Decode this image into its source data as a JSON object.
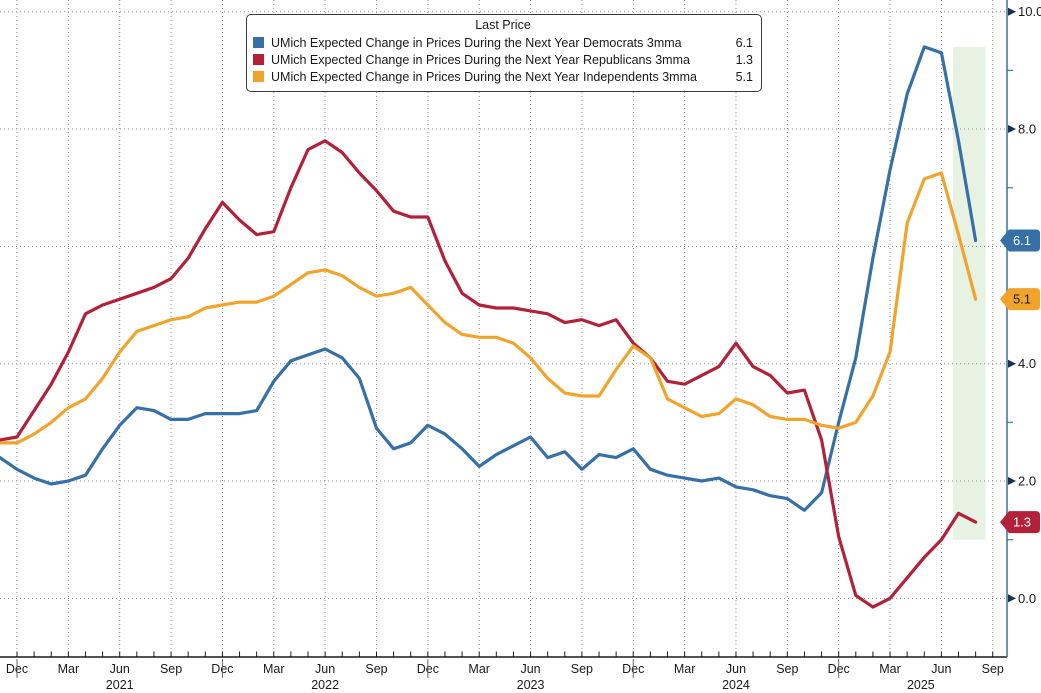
{
  "legend": {
    "title": "Last Price",
    "items": [
      {
        "id": "democrats",
        "label": "UMich Expected Change in Prices During the Next Year Democrats 3mma",
        "value": "6.1"
      },
      {
        "id": "republicans",
        "label": "UMich Expected Change in Prices During the Next Year Republicans 3mma",
        "value": "1.3"
      },
      {
        "id": "independents",
        "label": "UMich Expected Change in Prices During the Next Year Independents 3mma",
        "value": "5.1"
      }
    ]
  },
  "colors": {
    "democrats": "#3670a6",
    "republicans": "#b32039",
    "independents": "#f0a42c",
    "grid": "#8f8f8f",
    "x_axis_line": "#1a1a1a",
    "y_axis_line": "#4878a0",
    "highlight_band": "#e8f2e3",
    "label_text": "#1a1a1a"
  },
  "chart_data": {
    "type": "line",
    "title": "",
    "x_label": "",
    "y_label": "",
    "grid": "dotted",
    "legend_position": "top-center",
    "ylim": [
      -1.0,
      10.2
    ],
    "x": [
      "Nov-20",
      "Dec-20",
      "Jan-21",
      "Feb-21",
      "Mar-21",
      "Apr-21",
      "May-21",
      "Jun-21",
      "Jul-21",
      "Aug-21",
      "Sep-21",
      "Oct-21",
      "Nov-21",
      "Dec-21",
      "Jan-22",
      "Feb-22",
      "Mar-22",
      "Apr-22",
      "May-22",
      "Jun-22",
      "Jul-22",
      "Aug-22",
      "Sep-22",
      "Oct-22",
      "Nov-22",
      "Dec-22",
      "Jan-23",
      "Feb-23",
      "Mar-23",
      "Apr-23",
      "May-23",
      "Jun-23",
      "Jul-23",
      "Aug-23",
      "Sep-23",
      "Oct-23",
      "Nov-23",
      "Dec-23",
      "Jan-24",
      "Feb-24",
      "Mar-24",
      "Apr-24",
      "May-24",
      "Jun-24",
      "Jul-24",
      "Aug-24",
      "Sep-24",
      "Oct-24",
      "Nov-24",
      "Dec-24",
      "Jan-25",
      "Feb-25",
      "Mar-25",
      "Apr-25",
      "May-25",
      "Jun-25",
      "Jul-25",
      "Aug-25"
    ],
    "series": [
      {
        "id": "democrats",
        "name": "UMich Expected Change in Prices During the Next Year Democrats 3mma",
        "last_price": 6.1,
        "values": [
          2.4,
          2.2,
          2.05,
          1.95,
          2.0,
          2.1,
          2.55,
          2.95,
          3.25,
          3.2,
          3.05,
          3.05,
          3.15,
          3.15,
          3.15,
          3.2,
          3.7,
          4.05,
          4.15,
          4.25,
          4.1,
          3.75,
          2.9,
          2.55,
          2.65,
          2.95,
          2.8,
          2.55,
          2.25,
          2.45,
          2.6,
          2.75,
          2.4,
          2.5,
          2.2,
          2.45,
          2.4,
          2.55,
          2.2,
          2.1,
          2.05,
          2.0,
          2.05,
          1.9,
          1.85,
          1.75,
          1.7,
          1.5,
          1.8,
          3.0,
          4.1,
          5.8,
          7.3,
          8.6,
          9.4,
          9.3,
          7.8,
          6.1
        ]
      },
      {
        "id": "republicans",
        "name": "UMich Expected Change in Prices During the Next Year Republicans 3mma",
        "last_price": 1.3,
        "values": [
          2.7,
          2.75,
          3.2,
          3.65,
          4.2,
          4.85,
          5.0,
          5.1,
          5.2,
          5.3,
          5.45,
          5.8,
          6.3,
          6.75,
          6.45,
          6.2,
          6.25,
          7.0,
          7.65,
          7.8,
          7.6,
          7.25,
          6.95,
          6.6,
          6.5,
          6.5,
          5.75,
          5.2,
          5.0,
          4.95,
          4.95,
          4.9,
          4.85,
          4.7,
          4.75,
          4.65,
          4.75,
          4.35,
          4.1,
          3.7,
          3.65,
          3.8,
          3.95,
          4.35,
          3.95,
          3.8,
          3.5,
          3.55,
          2.7,
          1.05,
          0.05,
          -0.15,
          0.0,
          0.35,
          0.7,
          1.0,
          1.45,
          1.3
        ]
      },
      {
        "id": "independents",
        "name": "UMich Expected Change in Prices During the Next Year Independents 3mma",
        "last_price": 5.1,
        "values": [
          2.65,
          2.65,
          2.8,
          3.0,
          3.25,
          3.4,
          3.75,
          4.2,
          4.55,
          4.65,
          4.75,
          4.8,
          4.95,
          5.0,
          5.05,
          5.05,
          5.15,
          5.35,
          5.55,
          5.6,
          5.5,
          5.3,
          5.15,
          5.2,
          5.3,
          5.0,
          4.7,
          4.5,
          4.45,
          4.45,
          4.35,
          4.1,
          3.75,
          3.5,
          3.45,
          3.45,
          3.9,
          4.3,
          4.1,
          3.4,
          3.25,
          3.1,
          3.15,
          3.4,
          3.3,
          3.1,
          3.05,
          3.05,
          2.95,
          2.9,
          3.0,
          3.45,
          4.2,
          6.4,
          7.15,
          7.25,
          6.2,
          5.1
        ]
      }
    ],
    "y_axis": {
      "major_ticks": [
        {
          "v": 10,
          "label": "10.0"
        },
        {
          "v": 8,
          "label": "8.0"
        },
        {
          "v": 6,
          "label": "6.0"
        },
        {
          "v": 4,
          "label": "4.0"
        },
        {
          "v": 2,
          "label": "2.0"
        },
        {
          "v": 0,
          "label": "0.0"
        }
      ],
      "minor_ticks": [
        9,
        7,
        5,
        3,
        1
      ]
    },
    "x_axis": {
      "quarter_labels": [
        "Dec",
        "Mar",
        "Jun",
        "Sep",
        "Dec",
        "Mar",
        "Jun",
        "Sep",
        "Dec",
        "Mar",
        "Jun",
        "Sep",
        "Dec",
        "Mar",
        "Jun",
        "Sep",
        "Dec",
        "Mar",
        "Jun",
        "Sep"
      ],
      "year_labels": [
        {
          "text": "2021",
          "q": 2
        },
        {
          "text": "2022",
          "q": 6
        },
        {
          "text": "2023",
          "q": 10
        },
        {
          "text": "2024",
          "q": 14
        },
        {
          "text": "2025",
          "q": 17.6
        }
      ],
      "year_separator_quarters": [
        0,
        4,
        8,
        12,
        16
      ]
    },
    "badges": [
      {
        "label": "6.1",
        "value": 6.1,
        "series": "democrats",
        "fg": "#ffffff"
      },
      {
        "label": "5.1",
        "value": 5.1,
        "series": "independents",
        "fg": "#1a1a1a"
      },
      {
        "label": "1.3",
        "value": 1.3,
        "series": "republicans",
        "fg": "#ffffff"
      }
    ],
    "highlight_band": {
      "from_month": "Jul-25",
      "to_month": "Aug-25",
      "top_value": 9.4,
      "bottom_value": 1.0
    }
  }
}
